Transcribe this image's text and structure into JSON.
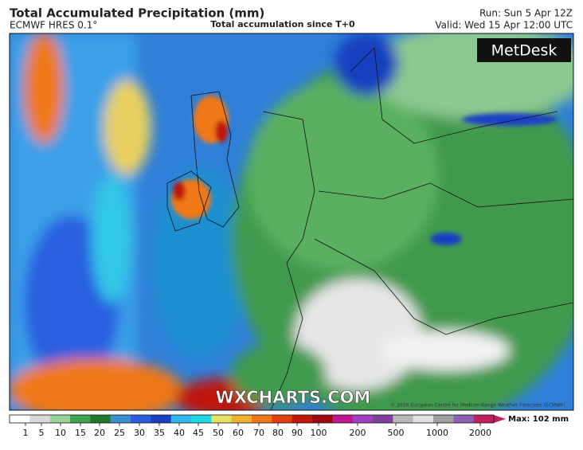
{
  "header": {
    "title": "Total Accumulated Precipitation (mm)",
    "model": "ECMWF HRES 0.1°",
    "subtitle": "Total accumulation since T+0",
    "run": "Run: Sun 5 Apr 12Z",
    "valid": "Valid: Wed 15 Apr 12:00 UTC"
  },
  "map": {
    "logo": "MetDesk",
    "watermark": "WXCHARTS.COM",
    "copyright": "© 2026 European Centre for Medium-Range Weather Forecasts (ECMWF)"
  },
  "colorbar": {
    "labels": [
      "1",
      "5",
      "10",
      "15",
      "20",
      "25",
      "30",
      "35",
      "40",
      "45",
      "50",
      "60",
      "70",
      "80",
      "90",
      "100",
      "200",
      "500",
      "1000",
      "2000"
    ],
    "colors": [
      "#ffffff",
      "#d9d9d9",
      "#9bd49b",
      "#3fa34d",
      "#1f7a2e",
      "#3a8fd0",
      "#2a5fe0",
      "#1840c0",
      "#30b8f0",
      "#20d8e8",
      "#e8e060",
      "#f0b030",
      "#f07818",
      "#e04010",
      "#c01808",
      "#a00810",
      "#c01890",
      "#a040c0",
      "#8040a0",
      "#b8b8b8",
      "#e0e0e0",
      "#a0a0a0",
      "#9060b0",
      "#c02060"
    ],
    "max": "Max: 102 mm"
  }
}
